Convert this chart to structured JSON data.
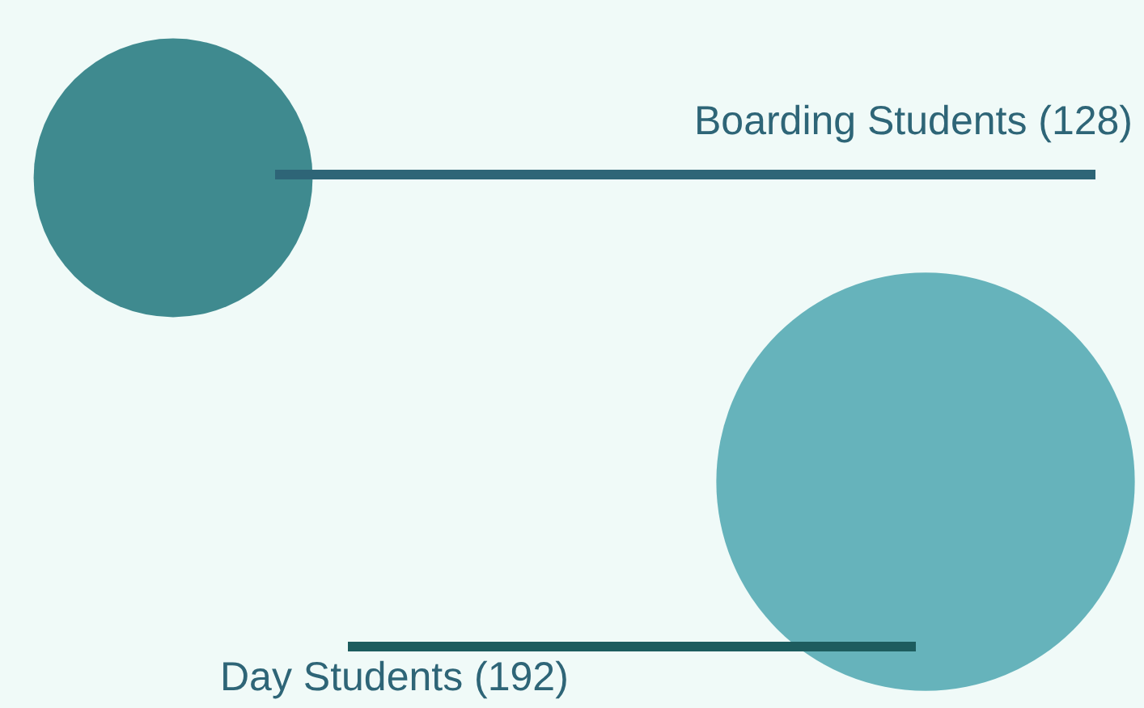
{
  "chart_data": {
    "type": "other",
    "categories": [
      "Boarding Students",
      "Day Students"
    ],
    "values": [
      128,
      192
    ],
    "value_labels": [
      "(128)",
      "(192)"
    ],
    "colors": [
      "#3f8a8f",
      "#66b3bb"
    ]
  }
}
